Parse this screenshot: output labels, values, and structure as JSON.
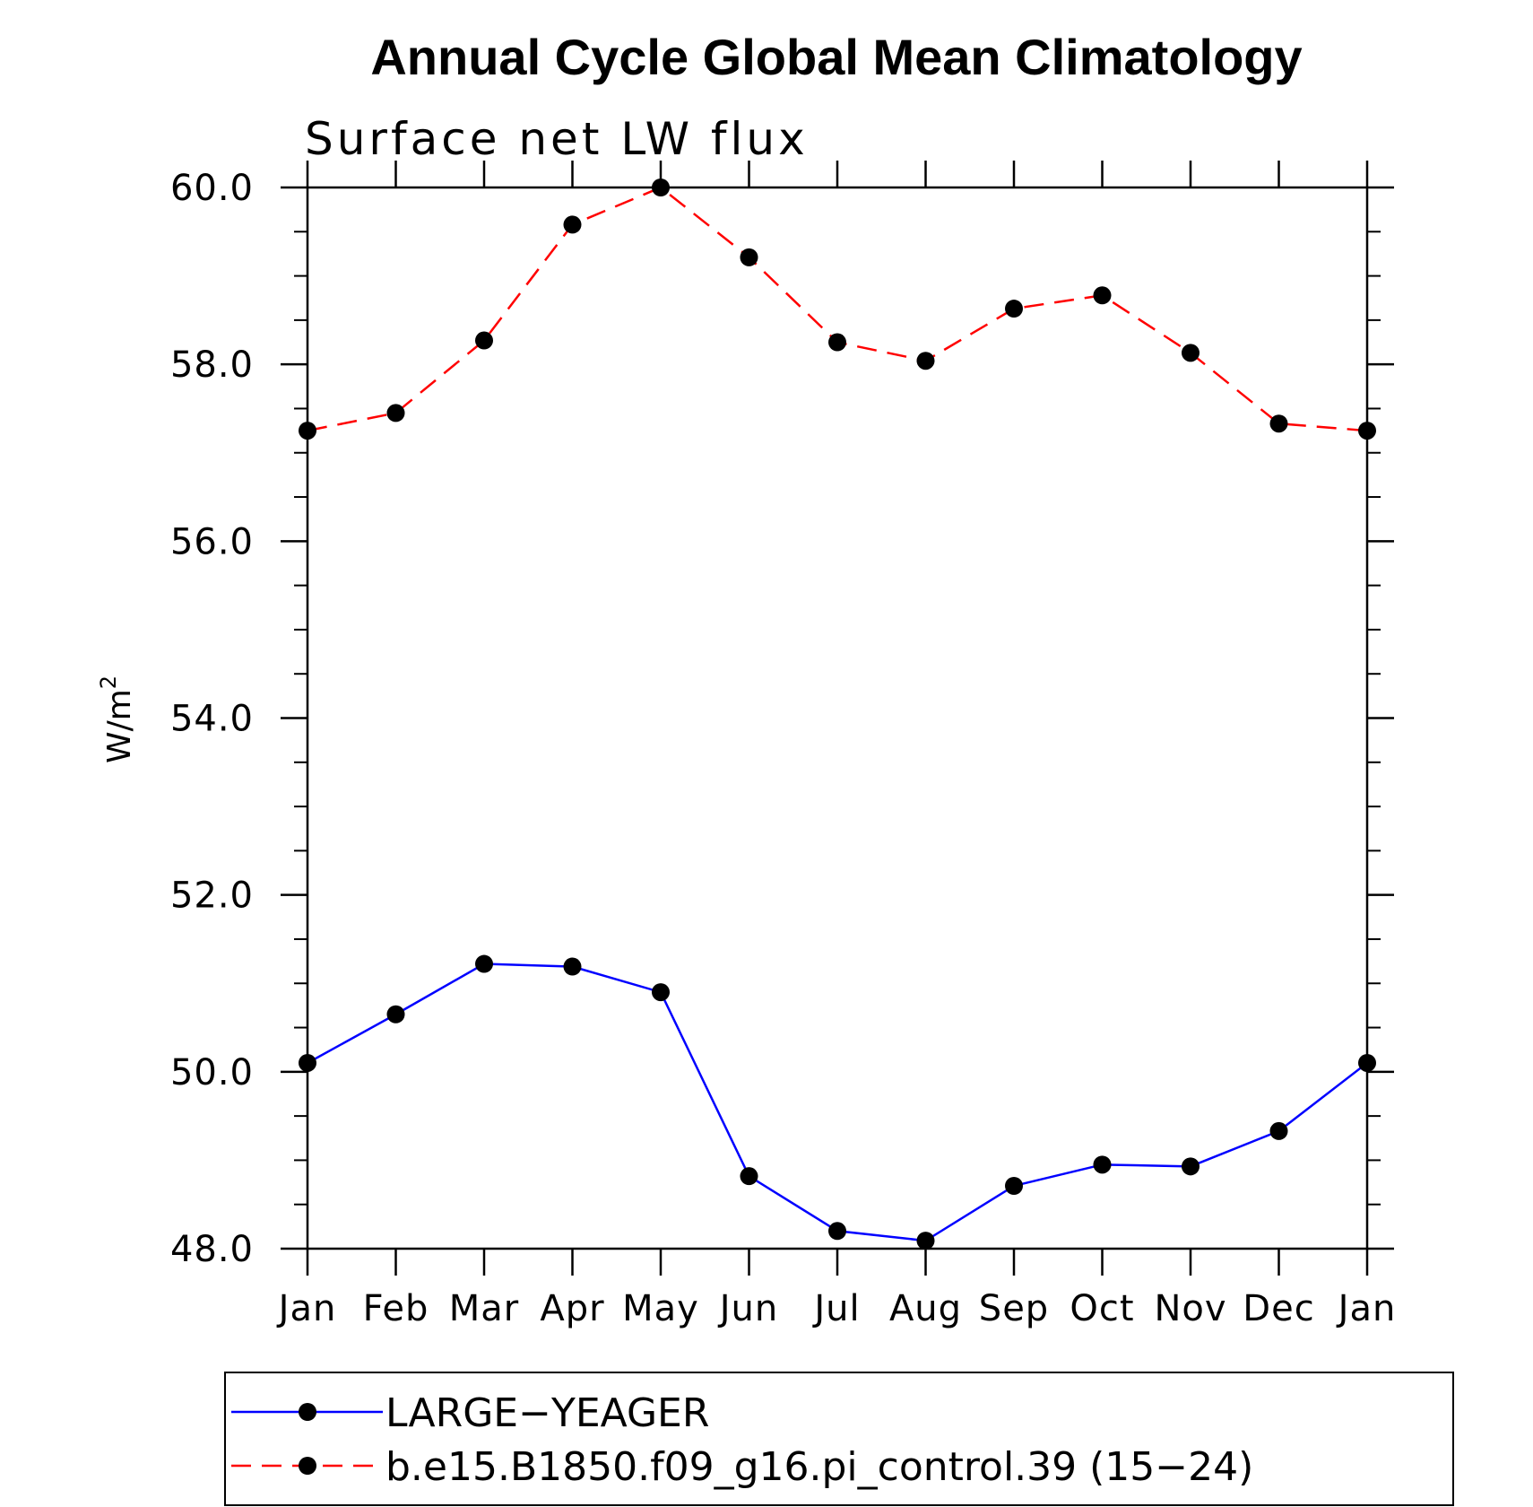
{
  "chart_data": {
    "type": "line",
    "title": "Annual Cycle Global Mean Climatology",
    "subtitle": "Surface net LW flux",
    "xlabel": "",
    "ylabel": "W/m",
    "ylabel_superscript": "2",
    "categories": [
      "Jan",
      "Feb",
      "Mar",
      "Apr",
      "May",
      "Jun",
      "Jul",
      "Aug",
      "Sep",
      "Oct",
      "Nov",
      "Dec",
      "Jan"
    ],
    "ylim": [
      48.0,
      60.0
    ],
    "yticks": [
      "48.0",
      "50.0",
      "52.0",
      "54.0",
      "56.0",
      "58.0",
      "60.0"
    ],
    "ytick_values": [
      48,
      50,
      52,
      54,
      56,
      58,
      60
    ],
    "grid": false,
    "legend_position": "bottom",
    "series": [
      {
        "name": "LARGE−YEAGER",
        "color": "#0000ff",
        "dash": "solid",
        "values": [
          50.1,
          50.65,
          51.22,
          51.19,
          50.9,
          48.82,
          48.2,
          48.09,
          48.71,
          48.95,
          48.93,
          49.33,
          50.1
        ]
      },
      {
        "name": "b.e15.B1850.f09_g16.pi_control.39 (15−24)",
        "color": "#ff0000",
        "dash": "dashed",
        "values": [
          57.25,
          57.45,
          58.27,
          59.58,
          60.0,
          59.21,
          58.25,
          58.04,
          58.63,
          58.78,
          58.13,
          57.33,
          57.25
        ]
      }
    ]
  }
}
